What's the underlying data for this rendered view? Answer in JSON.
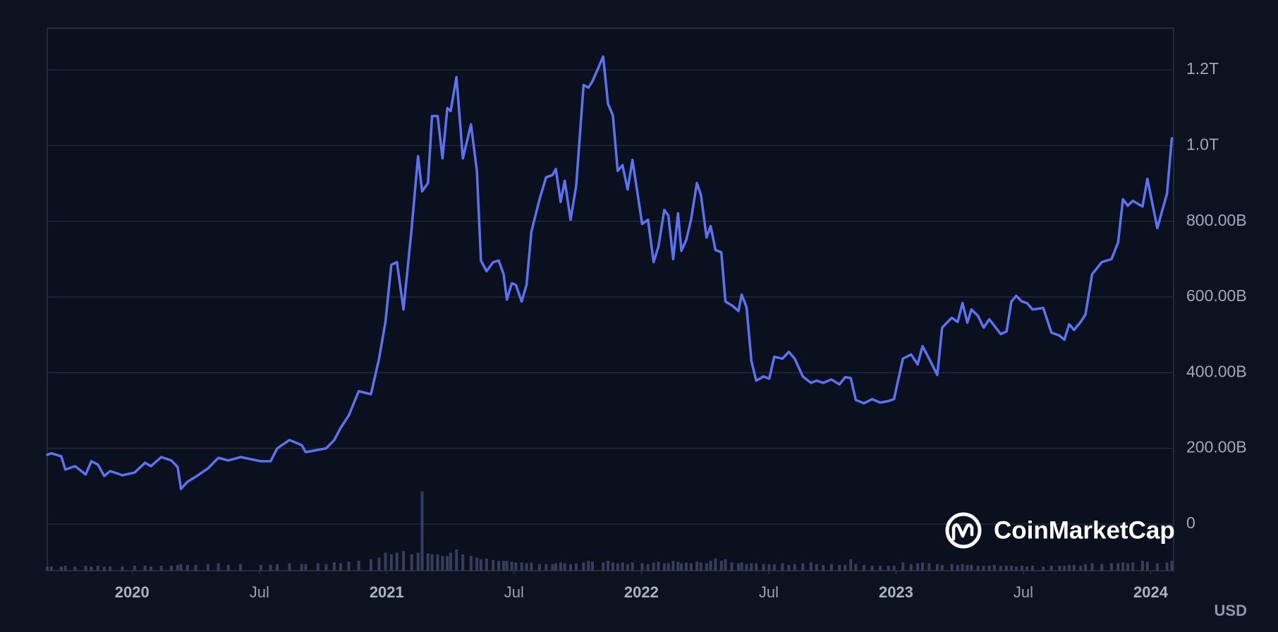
{
  "chart_data": {
    "type": "line",
    "color": "#5b73f2",
    "volume_color": "#363e5c",
    "grid": true,
    "currency": "USD",
    "watermark": "CoinMarketCap",
    "xlim": [
      2019.667,
      2024.09
    ],
    "xticks": [
      2020,
      {
        "value": 2020.5,
        "label": "Jul"
      },
      2021,
      {
        "value": 2021.5,
        "label": "Jul"
      },
      2022,
      {
        "value": 2022.5,
        "label": "Jul"
      },
      2023,
      {
        "value": 2023.5,
        "label": "Jul"
      },
      2024
    ],
    "ylim": [
      -123,
      1310
    ],
    "yticks": [
      0,
      {
        "value": 200,
        "label": "200.00B"
      },
      {
        "value": 400,
        "label": "400.00B"
      },
      {
        "value": 600,
        "label": "600.00B"
      },
      {
        "value": 800,
        "label": "800.00B"
      },
      {
        "value": 1000,
        "label": "1.0T"
      },
      {
        "value": 1200,
        "label": "1.2T"
      }
    ],
    "y2lim": [
      0,
      665
    ],
    "x": [
      2019.667,
      2019.683,
      2019.722,
      2019.738,
      2019.776,
      2019.818,
      2019.84,
      2019.866,
      2019.891,
      2019.914,
      2019.962,
      2020.01,
      2020.051,
      2020.074,
      2020.115,
      2020.154,
      2020.179,
      2020.192,
      2020.218,
      2020.25,
      2020.298,
      2020.339,
      2020.378,
      2020.426,
      2020.506,
      2020.544,
      2020.57,
      2020.618,
      2020.666,
      2020.682,
      2020.73,
      2020.762,
      2020.794,
      2020.819,
      2020.851,
      2020.89,
      2020.938,
      2020.97,
      2020.995,
      2021.018,
      2021.04,
      2021.066,
      2021.098,
      2021.123,
      2021.139,
      2021.162,
      2021.178,
      2021.2,
      2021.219,
      2021.238,
      2021.251,
      2021.274,
      2021.299,
      2021.331,
      2021.354,
      2021.37,
      2021.392,
      2021.418,
      2021.44,
      2021.459,
      2021.472,
      2021.491,
      2021.507,
      2021.53,
      2021.549,
      2021.568,
      2021.6,
      2021.626,
      2021.651,
      2021.664,
      2021.683,
      2021.699,
      2021.722,
      2021.744,
      2021.773,
      2021.792,
      2021.808,
      2021.85,
      2021.869,
      2021.888,
      2021.907,
      2021.926,
      2021.946,
      2021.965,
      2022.003,
      2022.026,
      2022.048,
      2022.067,
      2022.09,
      2022.106,
      2022.125,
      2022.144,
      2022.157,
      2022.176,
      2022.195,
      2022.218,
      2022.234,
      2022.256,
      2022.272,
      2022.291,
      2022.314,
      2022.33,
      2022.355,
      2022.381,
      2022.394,
      2022.413,
      2022.432,
      2022.451,
      2022.48,
      2022.502,
      2022.522,
      2022.554,
      2022.579,
      2022.602,
      2022.634,
      2022.666,
      2022.688,
      2022.714,
      2022.746,
      2022.778,
      2022.8,
      2022.822,
      2022.842,
      2022.874,
      2022.906,
      2022.938,
      2022.97,
      2022.992,
      2023.027,
      2023.059,
      2023.085,
      2023.104,
      2023.13,
      2023.162,
      2023.181,
      2023.219,
      2023.242,
      2023.261,
      2023.28,
      2023.296,
      2023.322,
      2023.344,
      2023.366,
      2023.386,
      2023.411,
      2023.434,
      2023.453,
      2023.472,
      2023.494,
      2023.514,
      2023.536,
      2023.578,
      2023.61,
      2023.642,
      2023.661,
      2023.68,
      2023.699,
      2023.725,
      2023.744,
      2023.77,
      2023.808,
      2023.846,
      2023.872,
      2023.891,
      2023.91,
      2023.93,
      2023.968,
      2023.987,
      2024.026,
      2024.064,
      2024.083
    ],
    "values": [
      183,
      187,
      179,
      144,
      153,
      131,
      166,
      157,
      127,
      140,
      129,
      136,
      162,
      153,
      177,
      168,
      151,
      93,
      112,
      125,
      147,
      175,
      168,
      177,
      166,
      166,
      200,
      222,
      209,
      190,
      196,
      200,
      222,
      254,
      287,
      351,
      343,
      437,
      534,
      685,
      692,
      567,
      782,
      972,
      879,
      901,
      1078,
      1078,
      966,
      1099,
      1091,
      1181,
      966,
      1056,
      933,
      696,
      668,
      692,
      696,
      660,
      593,
      636,
      632,
      588,
      632,
      772,
      858,
      916,
      922,
      938,
      851,
      907,
      804,
      894,
      1160,
      1153,
      1170,
      1235,
      1110,
      1080,
      933,
      948,
      884,
      962,
      793,
      804,
      692,
      733,
      830,
      815,
      700,
      821,
      722,
      750,
      804,
      901,
      869,
      757,
      787,
      724,
      718,
      588,
      578,
      563,
      606,
      573,
      431,
      379,
      390,
      384,
      442,
      437,
      455,
      437,
      390,
      373,
      379,
      373,
      382,
      369,
      388,
      386,
      328,
      319,
      330,
      321,
      325,
      330,
      437,
      448,
      422,
      470,
      437,
      394,
      519,
      545,
      534,
      584,
      532,
      567,
      550,
      519,
      541,
      524,
      502,
      509,
      588,
      603,
      588,
      584,
      567,
      571,
      506,
      498,
      487,
      528,
      513,
      534,
      554,
      660,
      692,
      700,
      744,
      858,
      841,
      854,
      839,
      912,
      782,
      873,
      1019
    ],
    "volume": [
      5,
      5,
      5,
      6,
      5,
      6,
      5,
      6,
      5,
      5,
      5,
      6,
      6,
      5,
      6,
      6,
      7,
      8,
      7,
      7,
      8,
      9,
      7,
      8,
      7,
      7,
      8,
      9,
      8,
      8,
      9,
      8,
      10,
      9,
      11,
      12,
      14,
      16,
      22,
      20,
      22,
      24,
      20,
      22,
      97,
      21,
      20,
      20,
      18,
      18,
      22,
      26,
      20,
      18,
      16,
      14,
      15,
      13,
      12,
      12,
      12,
      11,
      10,
      10,
      9,
      10,
      8,
      8,
      8,
      9,
      10,
      9,
      8,
      9,
      10,
      12,
      11,
      10,
      12,
      10,
      9,
      10,
      8,
      10,
      9,
      8,
      10,
      11,
      9,
      9,
      12,
      11,
      9,
      10,
      9,
      11,
      10,
      9,
      12,
      15,
      12,
      14,
      10,
      9,
      10,
      8,
      9,
      9,
      8,
      8,
      8,
      9,
      7,
      8,
      9,
      10,
      8,
      7,
      8,
      7,
      7,
      14,
      8,
      7,
      6,
      6,
      6,
      6,
      10,
      8,
      9,
      10,
      9,
      8,
      7,
      8,
      7,
      8,
      7,
      7,
      6,
      6,
      6,
      7,
      6,
      6,
      6,
      5,
      6,
      5,
      6,
      5,
      6,
      6,
      6,
      7,
      7,
      6,
      8,
      9,
      8,
      9,
      9,
      10,
      9,
      10,
      12,
      11,
      9,
      10,
      12
    ]
  }
}
